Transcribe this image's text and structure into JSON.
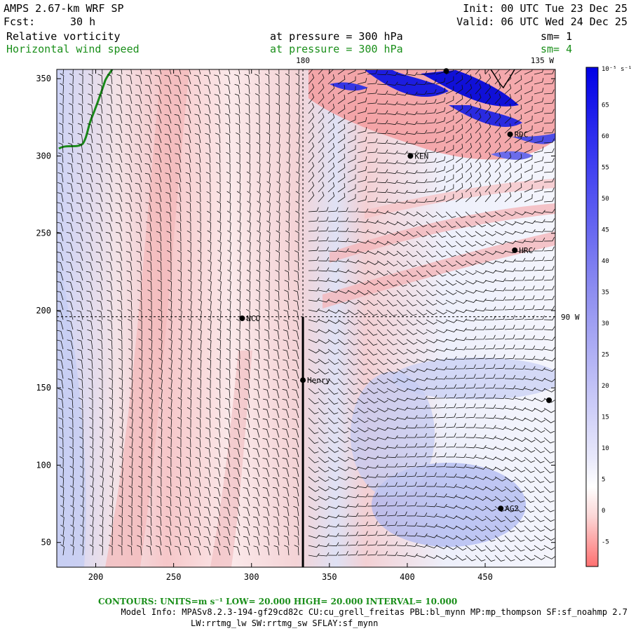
{
  "header": {
    "model": "AMPS 2.67-km WRF SP",
    "init": "Init: 00 UTC Tue 23 Dec 25",
    "fcst_label": "Fcst:",
    "fcst_value": "30 h",
    "valid": "Valid: 06 UTC Wed 24 Dec 25",
    "field1": "Relative vorticity",
    "field1_level": "at pressure =  300 hPa",
    "field1_sm": "sm= 1",
    "field2": "Horizontal wind speed",
    "field2_level": "at pressure =  300 hPa",
    "field2_sm": "sm= 4"
  },
  "map_labels": {
    "lon_180": "180",
    "lon_135w": "135 W",
    "lon_90w": "90 W"
  },
  "stations": [
    {
      "name": "RDC",
      "x": 466,
      "y": 314
    },
    {
      "name": "KEN",
      "x": 402,
      "y": 300
    },
    {
      "name": "HRC",
      "x": 469,
      "y": 239
    },
    {
      "name": "NCO",
      "x": 294,
      "y": 195
    },
    {
      "name": "Henry",
      "x": 333,
      "y": 155
    },
    {
      "name": "AG2",
      "x": 460,
      "y": 72
    },
    {
      "name": "",
      "x": 491,
      "y": 142
    },
    {
      "name": "",
      "x": 425,
      "y": 355
    }
  ],
  "chart_data": {
    "type": "heatmap",
    "xlim": [
      175,
      495
    ],
    "ylim": [
      34,
      356
    ],
    "x_ticks": [
      200,
      250,
      300,
      350,
      400,
      450
    ],
    "y_ticks": [
      50,
      100,
      150,
      200,
      250,
      300,
      350
    ],
    "reference_lines": {
      "x": 333,
      "y": 196
    },
    "section_line": {
      "x": 333,
      "y_from": 34,
      "y_to": 196
    },
    "colorbar": {
      "unit": "10⁻⁵ s⁻¹",
      "labels": [
        65,
        60,
        55,
        50,
        45,
        40,
        35,
        30,
        25,
        20,
        15,
        10,
        5,
        0,
        -5
      ],
      "range": [
        -9,
        71
      ],
      "colors": {
        "positive": "#0000ff",
        "zero": "#ffffff",
        "negative": "#ff6a6a"
      }
    }
  },
  "footer": {
    "contours": "CONTOURS:  UNITS=m s⁻¹  LOW=  20.000       HIGH=  20.000       INTERVAL=   10.000",
    "model_info": "Model Info: MPASv8.2.3-194-gf29cd82c CU:cu_grell_freitas PBL:bl_mynn MP:mp_thompson SF:sf_noahmp 2.7",
    "model_info2": "LW:rrtmg_lw SW:rrtmg_sw SFLAY:sf_mynn"
  }
}
